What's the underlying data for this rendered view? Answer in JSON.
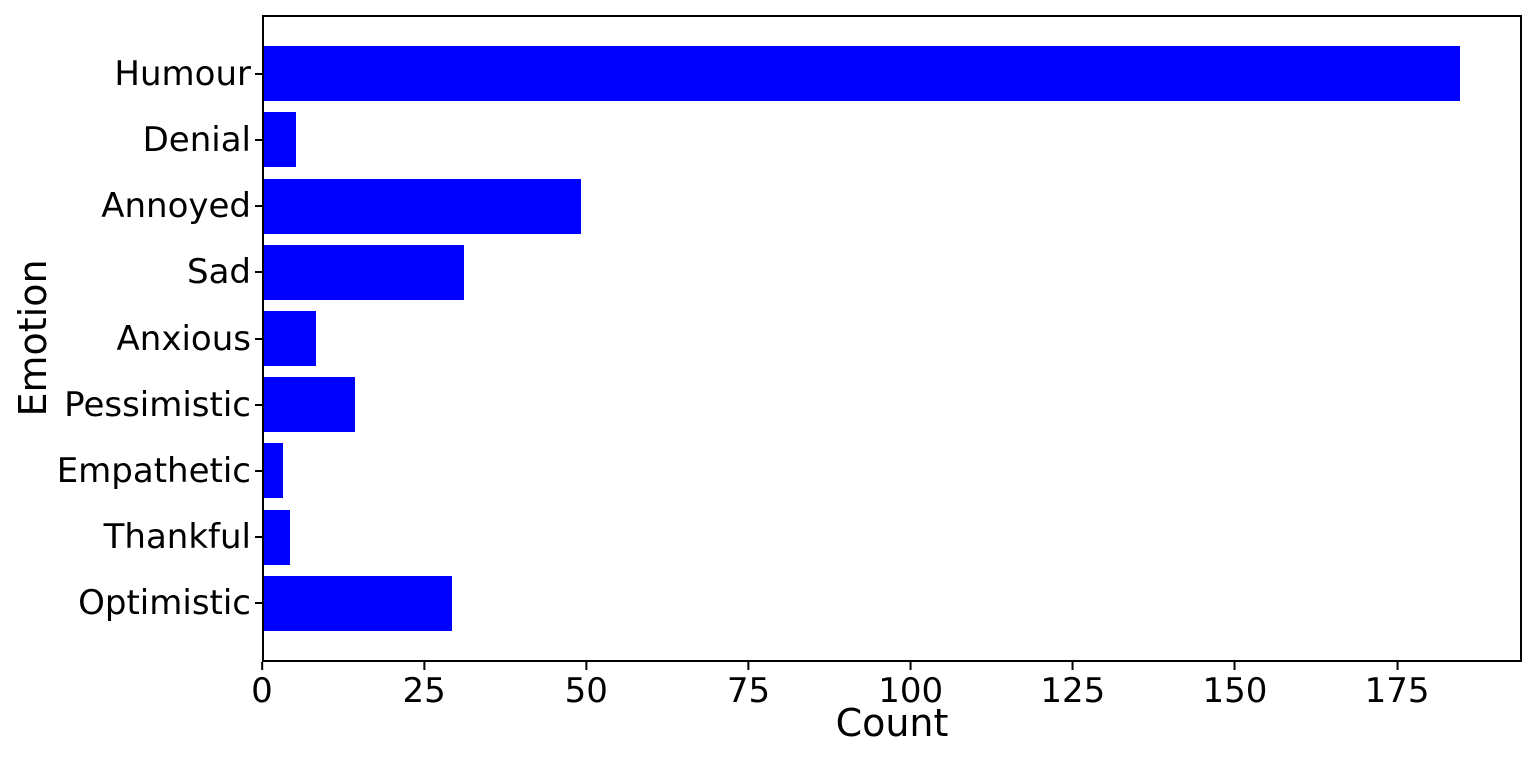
{
  "chart_data": {
    "type": "bar",
    "orientation": "horizontal",
    "title": "",
    "xlabel": "Count",
    "ylabel": "Emotion",
    "categories": [
      "Humour",
      "Denial",
      "Annoyed",
      "Sad",
      "Anxious",
      "Pessimistic",
      "Empathetic",
      "Thankful",
      "Optimistic"
    ],
    "values": [
      185,
      5,
      49,
      31,
      8,
      14,
      3,
      4,
      29
    ],
    "xticks": [
      0,
      25,
      50,
      75,
      100,
      125,
      150,
      175
    ],
    "xlim": [
      0,
      194.25
    ],
    "bar_color": "#0000ff",
    "axis_color": "#000000",
    "background_color": "#ffffff",
    "grid": false,
    "legend": false
  }
}
